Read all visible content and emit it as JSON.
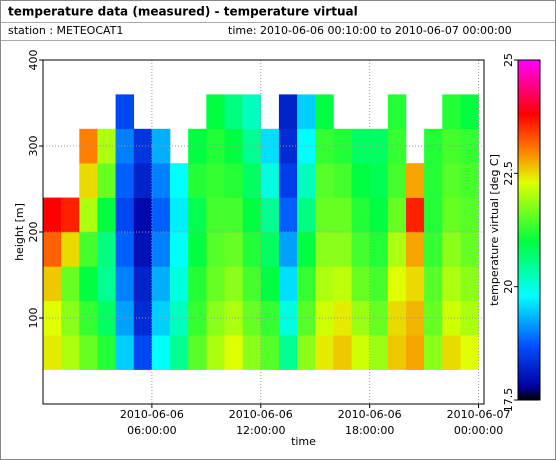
{
  "header": {
    "title": "temperature data (measured) - temperature virtual",
    "station": "station : METEOCAT1",
    "time_range": "time: 2010-06-06 00:10:00 to 2010-06-07 00:00:00"
  },
  "chart_data": {
    "type": "heatmap",
    "xlabel": "time",
    "ylabel": "height [m]",
    "zlabel": "temperature virtual [deg C]",
    "xlim": [
      0,
      24.3
    ],
    "ylim": [
      0,
      400
    ],
    "zlim": [
      17.5,
      25
    ],
    "xticks": [
      {
        "value": 6,
        "label": "2010-06-06 06:00:00"
      },
      {
        "value": 12,
        "label": "2010-06-06 12:00:00"
      },
      {
        "value": 18,
        "label": "2010-06-06 18:00:00"
      },
      {
        "value": 24,
        "label": "2010-06-07 00:00:00"
      }
    ],
    "yticks": [
      100,
      200,
      300,
      400
    ],
    "zticks": [
      17.5,
      20,
      22.5,
      25
    ],
    "grid": true,
    "colorscale": [
      [
        17.5,
        "#000000"
      ],
      [
        17.8,
        "#0000a0"
      ],
      [
        18.7,
        "#0050ff"
      ],
      [
        19.8,
        "#00ffff"
      ],
      [
        21,
        "#00ff40"
      ],
      [
        22.3,
        "#e0ff00"
      ],
      [
        23,
        "#ff8000"
      ],
      [
        23.8,
        "#ff0000"
      ],
      [
        25,
        "#ff00ff"
      ]
    ],
    "xbins": [
      0,
      1,
      2,
      3,
      4,
      5,
      6,
      7,
      8,
      9,
      10,
      11,
      12,
      13,
      14,
      15,
      16,
      17,
      18,
      19,
      20,
      21,
      22,
      23,
      24
    ],
    "ybins": [
      40,
      80,
      120,
      160,
      200,
      240,
      280,
      320,
      360
    ],
    "z": [
      [
        22.4,
        22.0,
        21.6,
        21.2,
        19.5,
        18.6,
        19.8,
        20.5,
        21.5,
        22.0,
        22.3,
        21.8,
        21.5,
        20.5,
        21.8,
        22.4,
        22.6,
        22.2,
        21.9,
        22.6,
        22.8,
        21.8,
        22.5,
        22.3
      ],
      [
        22.3,
        21.8,
        21.3,
        20.8,
        19.2,
        18.3,
        19.5,
        20.2,
        21.3,
        21.8,
        22.0,
        21.6,
        21.3,
        20.0,
        21.5,
        22.2,
        22.4,
        21.9,
        21.6,
        22.5,
        22.7,
        21.6,
        22.2,
        22.0
      ],
      [
        22.6,
        21.6,
        21.0,
        20.5,
        19.0,
        18.2,
        19.3,
        20.0,
        21.2,
        21.6,
        21.8,
        21.4,
        21.0,
        19.6,
        21.3,
        22.0,
        22.1,
        21.6,
        21.4,
        22.3,
        22.5,
        21.5,
        22.0,
        21.8
      ],
      [
        23.2,
        22.5,
        21.4,
        20.6,
        18.8,
        18.0,
        19.0,
        19.8,
        21.0,
        21.5,
        21.6,
        21.2,
        20.8,
        19.2,
        21.0,
        21.8,
        21.8,
        21.4,
        21.2,
        22.0,
        22.8,
        21.3,
        21.8,
        21.6
      ],
      [
        23.8,
        23.6,
        22.0,
        21.0,
        18.6,
        17.9,
        18.8,
        19.7,
        20.9,
        21.4,
        21.4,
        21.0,
        20.5,
        18.8,
        20.6,
        21.6,
        21.6,
        21.2,
        21.0,
        21.6,
        23.6,
        21.2,
        21.6,
        21.5
      ],
      [
        null,
        null,
        22.5,
        21.6,
        18.8,
        18.2,
        19.0,
        19.8,
        21.2,
        21.3,
        21.2,
        20.8,
        20.0,
        18.5,
        20.2,
        21.5,
        21.4,
        21.0,
        20.9,
        21.4,
        22.8,
        21.2,
        21.5,
        21.4
      ],
      [
        null,
        null,
        23.0,
        22.0,
        19.0,
        18.4,
        19.3,
        null,
        21.0,
        21.2,
        21.0,
        20.5,
        19.6,
        18.3,
        19.8,
        21.3,
        21.2,
        20.8,
        20.8,
        21.3,
        null,
        21.2,
        21.4,
        21.3
      ],
      [
        null,
        null,
        null,
        null,
        18.6,
        null,
        null,
        null,
        null,
        21.0,
        20.6,
        20.2,
        null,
        18.2,
        19.5,
        21.0,
        null,
        null,
        null,
        21.2,
        null,
        null,
        21.2,
        21.0
      ]
    ]
  }
}
